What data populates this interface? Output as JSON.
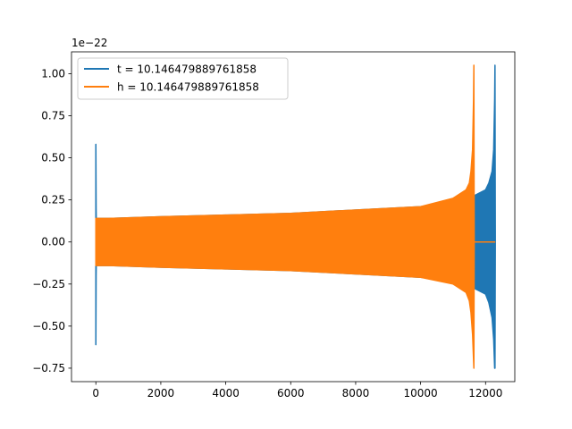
{
  "chart_data": {
    "type": "line",
    "title": "",
    "xlabel": "",
    "ylabel": "",
    "offset_text": "1e−22",
    "xlim": [
      -750,
      12900
    ],
    "ylim": [
      -0.83,
      1.13
    ],
    "x_ticks": [
      0,
      2000,
      4000,
      6000,
      8000,
      10000,
      12000
    ],
    "x_tick_labels": [
      "0",
      "2000",
      "4000",
      "6000",
      "8000",
      "10000",
      "12000"
    ],
    "y_ticks": [
      -0.75,
      -0.5,
      -0.25,
      0.0,
      0.25,
      0.5,
      0.75,
      1.0
    ],
    "y_tick_labels": [
      "−0.75",
      "−0.50",
      "−0.25",
      "0.00",
      "0.25",
      "0.50",
      "0.75",
      "1.00"
    ],
    "grid": false,
    "legend_position": "top-left",
    "series": [
      {
        "name": "t = 10.146479889761858",
        "color": "#1f77b4",
        "envelope": {
          "x": [
            0,
            8,
            12,
            40,
            400,
            2000,
            4000,
            6000,
            8000,
            10000,
            11000,
            11600,
            11700,
            12000,
            12100,
            12200,
            12250,
            12280,
            12290,
            12300
          ],
          "upper": [
            0.58,
            0.2,
            0.14,
            0.14,
            0.14,
            0.15,
            0.16,
            0.17,
            0.19,
            0.21,
            0.23,
            0.27,
            0.28,
            0.31,
            0.35,
            0.42,
            0.55,
            0.85,
            1.05,
            0.0
          ],
          "lower": [
            -0.61,
            -0.2,
            -0.14,
            -0.14,
            -0.14,
            -0.15,
            -0.16,
            -0.17,
            -0.19,
            -0.21,
            -0.23,
            -0.27,
            -0.28,
            -0.31,
            -0.36,
            -0.45,
            -0.58,
            -0.75,
            -0.75,
            0.0
          ]
        }
      },
      {
        "name": "h = 10.146479889761858",
        "color": "#ff7f0e",
        "envelope": {
          "x": [
            0,
            8,
            12,
            40,
            400,
            2000,
            4000,
            6000,
            8000,
            10000,
            11000,
            11400,
            11500,
            11550,
            11600,
            11630,
            11640,
            11650
          ],
          "upper": [
            0.14,
            0.14,
            0.14,
            0.14,
            0.14,
            0.15,
            0.16,
            0.17,
            0.19,
            0.21,
            0.26,
            0.31,
            0.35,
            0.42,
            0.55,
            0.85,
            1.05,
            0.0
          ],
          "lower": [
            -0.14,
            -0.14,
            -0.14,
            -0.14,
            -0.14,
            -0.15,
            -0.16,
            -0.17,
            -0.19,
            -0.21,
            -0.25,
            -0.3,
            -0.35,
            -0.42,
            -0.55,
            -0.7,
            -0.75,
            0.0
          ]
        },
        "tail": {
          "x": [
            11650,
            12300
          ],
          "y": [
            0.0,
            0.0
          ]
        }
      }
    ]
  }
}
